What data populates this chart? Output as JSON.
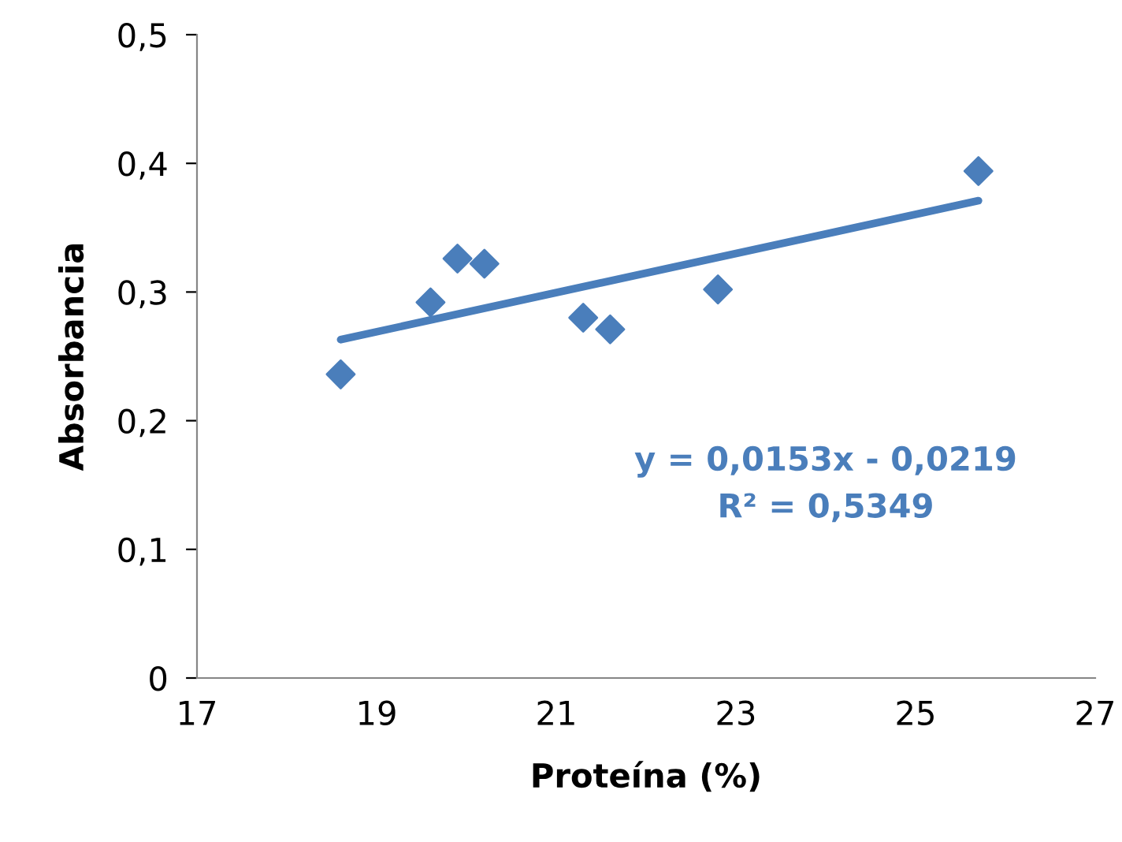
{
  "chart_data": {
    "type": "scatter",
    "xlabel": "Proteína (%)",
    "ylabel": "Absorbancia",
    "series": [
      {
        "color": "#4a7ebb",
        "marker": "diamond",
        "x": [
          18.6,
          19.6,
          19.9,
          20.2,
          21.3,
          21.6,
          22.8,
          25.7
        ],
        "values": [
          0.236,
          0.292,
          0.326,
          0.322,
          0.28,
          0.271,
          0.302,
          0.394
        ]
      },
      {
        "type": "line",
        "color": "#4a7ebb",
        "marker": "none",
        "line_style": "solid",
        "x": [
          18.6,
          25.7
        ],
        "values": [
          0.263,
          0.371
        ]
      }
    ],
    "annotations": [
      "y = 0,0153x - 0,0219\nR² = 0,5349"
    ],
    "xlim": [
      17,
      27
    ],
    "xticks": [
      17,
      19,
      21,
      23,
      25,
      27
    ],
    "ylim": [
      0,
      0.5
    ],
    "yticks": [
      {
        "value": 0,
        "label": "0"
      },
      {
        "value": 0.1,
        "label": "0,1"
      },
      {
        "value": 0.2,
        "label": "0,2"
      },
      {
        "value": 0.3,
        "label": "0,3"
      },
      {
        "value": 0.4,
        "label": "0,4"
      },
      {
        "value": 0.5,
        "label": "0,5"
      }
    ],
    "grid": false,
    "legend": false
  }
}
